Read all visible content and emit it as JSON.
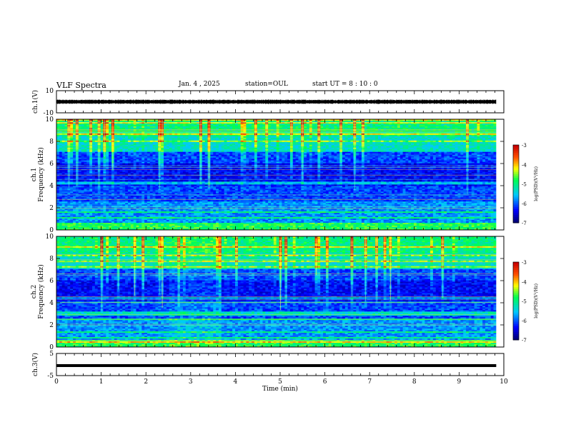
{
  "header": {
    "title": "VLF Spectra",
    "date": "Jan. 4 , 2025",
    "station": "station=OUL",
    "start": "start UT = 8 : 10 : 0"
  },
  "chart_data": [
    {
      "id": "ch1-waveform",
      "type": "line",
      "ylabel": "ch.1(V)",
      "ylim": [
        -10,
        10
      ],
      "yticks": [
        "10",
        "-10"
      ],
      "xlim": [
        0,
        10
      ],
      "data_end_min": 9.83,
      "amplitude_band": [
        -2,
        2
      ]
    },
    {
      "id": "ch1-spectrogram",
      "type": "heatmap",
      "ylabel": "ch.1",
      "ylabel2": "Frequency (kHz)",
      "ylim": [
        0,
        10
      ],
      "yticks": [
        "0",
        "2",
        "4",
        "6",
        "8",
        "10"
      ],
      "xlim": [
        0,
        10
      ],
      "colorbar": {
        "label": "log(PSD)(V²/Hz)",
        "range": [
          -7,
          -3
        ],
        "ticks": [
          "-3",
          "-4",
          "-5",
          "-6",
          "-7"
        ]
      }
    },
    {
      "id": "ch2-spectrogram",
      "type": "heatmap",
      "ylabel": "ch.2",
      "ylabel2": "Frequency (kHz)",
      "ylim": [
        0,
        10
      ],
      "yticks": [
        "0",
        "2",
        "4",
        "6",
        "8",
        "10"
      ],
      "xlim": [
        0,
        10
      ],
      "colorbar": {
        "label": "log(PSD)(V²/Hz)",
        "range": [
          -7,
          -3
        ],
        "ticks": [
          "-3",
          "-4",
          "-5",
          "-6",
          "-7"
        ]
      }
    },
    {
      "id": "ch3-waveform",
      "type": "line",
      "ylabel": "ch.3(V)",
      "ylim": [
        -5,
        5
      ],
      "yticks": [
        "5",
        "-5"
      ],
      "xlim": [
        0,
        10
      ],
      "data_end_min": 9.83,
      "value": -0.5
    }
  ],
  "x_axis": {
    "label": "Time (min)",
    "ticks": [
      "0",
      "1",
      "2",
      "3",
      "4",
      "5",
      "6",
      "7",
      "8",
      "9",
      "10"
    ]
  }
}
